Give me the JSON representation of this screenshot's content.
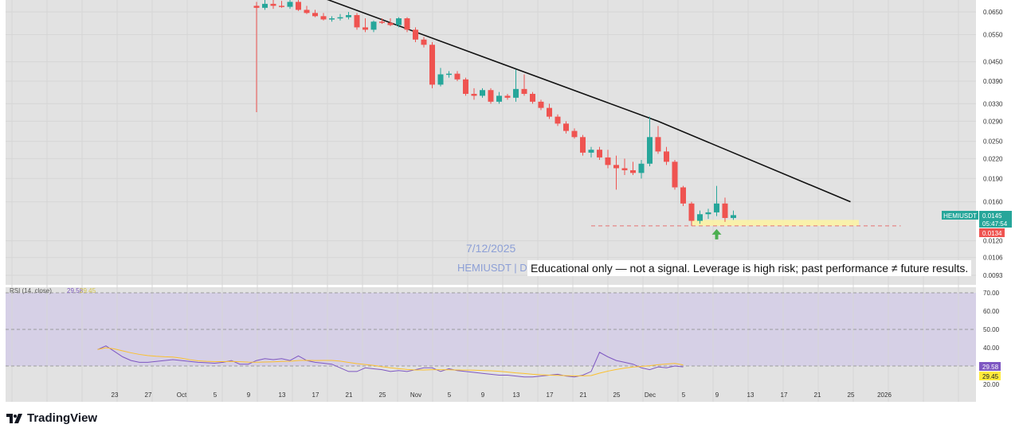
{
  "brand": {
    "name": "TradingView",
    "icon": "tradingview-logo-icon"
  },
  "watermark": {
    "date": "7/12/2025",
    "symbol": "HEMIUSDT | D"
  },
  "disclaimer": "Educational only — not a signal. Leverage is high risk; past performance ≠ future results.",
  "price_axis": {
    "ticks": [
      "0.0650",
      "0.0550",
      "0.0450",
      "0.0390",
      "0.0330",
      "0.0290",
      "0.0250",
      "0.0220",
      "0.0190",
      "0.0160",
      "0.0120",
      "0.0106",
      "0.0093"
    ],
    "symbol_tag": "HEMIUSDT",
    "last_price": "0.0145",
    "countdown": "05:47:54",
    "low_level": "0.0134"
  },
  "time_axis": {
    "labels": [
      "23",
      "27",
      "Oct",
      "5",
      "9",
      "13",
      "17",
      "21",
      "25",
      "Nov",
      "5",
      "9",
      "13",
      "17",
      "21",
      "25",
      "Dec",
      "5",
      "9",
      "13",
      "17",
      "21",
      "25",
      "2026"
    ]
  },
  "rsi": {
    "label": "RSI (14, close)",
    "value": "29.58",
    "ma_value": "29.45",
    "ticks": [
      "70.00",
      "60.00",
      "50.00",
      "40.00",
      "20.00"
    ]
  },
  "colors": {
    "bull": "#26a69a",
    "bear": "#ef5350",
    "trendline": "#111111",
    "rsi_line": "#7e57c2",
    "rsi_ma": "#fbc02d",
    "support_zone": "#fff59d",
    "support_line": "#e57373",
    "arrow": "#4caf50",
    "symbol_tag_bg": "#26a69a",
    "low_tag_bg": "#ef5350",
    "rsi_tag_bg": "#7e57c2",
    "rsi_ma_tag_bg": "#ffeb3b"
  },
  "chart_data": {
    "type": "candlestick",
    "x_axis": "date",
    "y_scale": "log",
    "candles": [
      {
        "o": 0.068,
        "h": 0.07,
        "l": 0.031,
        "c": 0.067
      },
      {
        "o": 0.067,
        "h": 0.071,
        "l": 0.066,
        "c": 0.069
      },
      {
        "o": 0.069,
        "h": 0.0715,
        "l": 0.0665,
        "c": 0.068
      },
      {
        "o": 0.068,
        "h": 0.0705,
        "l": 0.067,
        "c": 0.0675
      },
      {
        "o": 0.0675,
        "h": 0.071,
        "l": 0.0665,
        "c": 0.07
      },
      {
        "o": 0.07,
        "h": 0.0715,
        "l": 0.0655,
        "c": 0.066
      },
      {
        "o": 0.066,
        "h": 0.068,
        "l": 0.064,
        "c": 0.0645
      },
      {
        "o": 0.0645,
        "h": 0.066,
        "l": 0.0625,
        "c": 0.063
      },
      {
        "o": 0.063,
        "h": 0.0645,
        "l": 0.061,
        "c": 0.0615
      },
      {
        "o": 0.0615,
        "h": 0.063,
        "l": 0.0605,
        "c": 0.062
      },
      {
        "o": 0.062,
        "h": 0.064,
        "l": 0.061,
        "c": 0.0625
      },
      {
        "o": 0.0625,
        "h": 0.065,
        "l": 0.0615,
        "c": 0.0635
      },
      {
        "o": 0.0635,
        "h": 0.0645,
        "l": 0.057,
        "c": 0.058
      },
      {
        "o": 0.058,
        "h": 0.062,
        "l": 0.056,
        "c": 0.057
      },
      {
        "o": 0.057,
        "h": 0.061,
        "l": 0.056,
        "c": 0.0605
      },
      {
        "o": 0.0605,
        "h": 0.062,
        "l": 0.0595,
        "c": 0.06
      },
      {
        "o": 0.06,
        "h": 0.062,
        "l": 0.0585,
        "c": 0.059
      },
      {
        "o": 0.059,
        "h": 0.0625,
        "l": 0.058,
        "c": 0.062
      },
      {
        "o": 0.062,
        "h": 0.0625,
        "l": 0.056,
        "c": 0.057
      },
      {
        "o": 0.057,
        "h": 0.058,
        "l": 0.052,
        "c": 0.053
      },
      {
        "o": 0.053,
        "h": 0.054,
        "l": 0.05,
        "c": 0.051
      },
      {
        "o": 0.051,
        "h": 0.052,
        "l": 0.037,
        "c": 0.038
      },
      {
        "o": 0.038,
        "h": 0.043,
        "l": 0.0375,
        "c": 0.041
      },
      {
        "o": 0.041,
        "h": 0.042,
        "l": 0.04,
        "c": 0.0412
      },
      {
        "o": 0.0412,
        "h": 0.042,
        "l": 0.039,
        "c": 0.0395
      },
      {
        "o": 0.0395,
        "h": 0.04,
        "l": 0.035,
        "c": 0.0355
      },
      {
        "o": 0.0355,
        "h": 0.037,
        "l": 0.034,
        "c": 0.035
      },
      {
        "o": 0.035,
        "h": 0.037,
        "l": 0.0345,
        "c": 0.0365
      },
      {
        "o": 0.0365,
        "h": 0.037,
        "l": 0.033,
        "c": 0.0335
      },
      {
        "o": 0.0335,
        "h": 0.036,
        "l": 0.033,
        "c": 0.035
      },
      {
        "o": 0.035,
        "h": 0.0355,
        "l": 0.034,
        "c": 0.0345
      },
      {
        "o": 0.0345,
        "h": 0.0425,
        "l": 0.0335,
        "c": 0.0368
      },
      {
        "o": 0.0368,
        "h": 0.041,
        "l": 0.035,
        "c": 0.0355
      },
      {
        "o": 0.0355,
        "h": 0.036,
        "l": 0.033,
        "c": 0.0335
      },
      {
        "o": 0.0335,
        "h": 0.034,
        "l": 0.0315,
        "c": 0.032
      },
      {
        "o": 0.032,
        "h": 0.033,
        "l": 0.0295,
        "c": 0.03
      },
      {
        "o": 0.03,
        "h": 0.0305,
        "l": 0.028,
        "c": 0.0285
      },
      {
        "o": 0.0285,
        "h": 0.029,
        "l": 0.0265,
        "c": 0.027
      },
      {
        "o": 0.027,
        "h": 0.0275,
        "l": 0.0255,
        "c": 0.0258
      },
      {
        "o": 0.0258,
        "h": 0.0262,
        "l": 0.0225,
        "c": 0.023
      },
      {
        "o": 0.023,
        "h": 0.024,
        "l": 0.0222,
        "c": 0.0235
      },
      {
        "o": 0.0235,
        "h": 0.024,
        "l": 0.0218,
        "c": 0.0222
      },
      {
        "o": 0.0222,
        "h": 0.0235,
        "l": 0.0205,
        "c": 0.021
      },
      {
        "o": 0.021,
        "h": 0.0225,
        "l": 0.0175,
        "c": 0.0205
      },
      {
        "o": 0.0205,
        "h": 0.022,
        "l": 0.0195,
        "c": 0.0202
      },
      {
        "o": 0.0202,
        "h": 0.0215,
        "l": 0.0195,
        "c": 0.0198
      },
      {
        "o": 0.0198,
        "h": 0.0218,
        "l": 0.019,
        "c": 0.0212
      },
      {
        "o": 0.0212,
        "h": 0.03,
        "l": 0.0208,
        "c": 0.0258
      },
      {
        "o": 0.0258,
        "h": 0.028,
        "l": 0.0228,
        "c": 0.0232
      },
      {
        "o": 0.0232,
        "h": 0.024,
        "l": 0.021,
        "c": 0.0215
      },
      {
        "o": 0.0215,
        "h": 0.0218,
        "l": 0.0175,
        "c": 0.0178
      },
      {
        "o": 0.0178,
        "h": 0.018,
        "l": 0.0155,
        "c": 0.0158
      },
      {
        "o": 0.0158,
        "h": 0.016,
        "l": 0.0134,
        "c": 0.0139
      },
      {
        "o": 0.0139,
        "h": 0.015,
        "l": 0.0136,
        "c": 0.0146
      },
      {
        "o": 0.0146,
        "h": 0.0152,
        "l": 0.0141,
        "c": 0.0148
      },
      {
        "o": 0.0148,
        "h": 0.018,
        "l": 0.0144,
        "c": 0.0158
      },
      {
        "o": 0.0158,
        "h": 0.0165,
        "l": 0.0138,
        "c": 0.0142
      },
      {
        "o": 0.0142,
        "h": 0.015,
        "l": 0.014,
        "c": 0.0145
      }
    ],
    "trendline": [
      {
        "candle": 8,
        "price": 0.072
      },
      {
        "candle": 48,
        "price": 0.029
      },
      {
        "candle": 71,
        "price": 0.016
      }
    ],
    "support_zone": {
      "from_candle": 52,
      "to_candle": 72,
      "low": 0.0134,
      "high": 0.014
    },
    "support_line": {
      "from_candle": 40,
      "to_candle": 77,
      "price": 0.0134
    },
    "arrow_candle": 55,
    "rsi_series": [
      39,
      41,
      38,
      35,
      33,
      32,
      32,
      32.5,
      33,
      33.5,
      33,
      32.5,
      32,
      31.8,
      31.5,
      32,
      33,
      31,
      31,
      33,
      34,
      33.5,
      34,
      33,
      35.5,
      33,
      32,
      31.5,
      31,
      29,
      27,
      27,
      29,
      28.5,
      28,
      27,
      27.5,
      27,
      28,
      29,
      29,
      27,
      28.5,
      27.5,
      27,
      26.5,
      26,
      25.5,
      25,
      25,
      24.5,
      24,
      24,
      24.5,
      25,
      25.5,
      24.5,
      24,
      25,
      27,
      37.5,
      35,
      33,
      32,
      31,
      29,
      28,
      29.5,
      29,
      30,
      29.5
    ],
    "rsi_start_candle": -19,
    "rsi_ylim": [
      20,
      75
    ]
  }
}
